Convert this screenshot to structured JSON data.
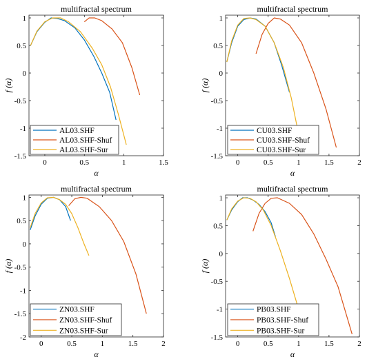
{
  "chart_data": [
    {
      "type": "line",
      "title": "multifractal spectrum",
      "xlabel": "α",
      "ylabel": "f (α)",
      "xlim": [
        -0.2,
        1.5
      ],
      "ylim": [
        -1.5,
        1.05
      ],
      "xticks": [
        0,
        0.5,
        1,
        1.5
      ],
      "xtick_labels": [
        "0",
        "0.5",
        "1",
        "1.5"
      ],
      "yticks": [
        -1.5,
        -1,
        -0.5,
        0,
        0.5,
        1
      ],
      "ytick_labels": [
        "-1.5",
        "-1",
        "-0.5",
        "0",
        "0.5",
        "1"
      ],
      "legend_position": "bottom-left",
      "series": [
        {
          "name": "AL03.SHF",
          "color": "#0072BD",
          "x": [
            -0.18,
            -0.1,
            0.0,
            0.08,
            0.16,
            0.25,
            0.38,
            0.5,
            0.62,
            0.72,
            0.82,
            0.9
          ],
          "y": [
            0.5,
            0.75,
            0.92,
            1.0,
            0.99,
            0.95,
            0.82,
            0.6,
            0.3,
            0.0,
            -0.35,
            -0.85
          ]
        },
        {
          "name": "AL03.SHF-Shuf",
          "color": "#D95319",
          "x": [
            0.5,
            0.56,
            0.63,
            0.72,
            0.85,
            0.98,
            1.1,
            1.2
          ],
          "y": [
            0.93,
            1.0,
            1.0,
            0.95,
            0.8,
            0.55,
            0.1,
            -0.4
          ]
        },
        {
          "name": "AL03.SHF-Sur",
          "color": "#EDB120",
          "x": [
            -0.18,
            -0.1,
            0.0,
            0.1,
            0.2,
            0.3,
            0.45,
            0.6,
            0.72,
            0.83,
            0.93,
            1.03
          ],
          "y": [
            0.5,
            0.76,
            0.93,
            1.0,
            1.0,
            0.93,
            0.75,
            0.45,
            0.15,
            -0.25,
            -0.75,
            -1.3
          ]
        }
      ]
    },
    {
      "type": "line",
      "title": "multifractal spectrum",
      "xlabel": "α",
      "ylabel": "f (α)",
      "xlim": [
        -0.2,
        2.0
      ],
      "ylim": [
        -1.5,
        1.05
      ],
      "xticks": [
        0,
        0.5,
        1,
        1.5,
        2
      ],
      "xtick_labels": [
        "0",
        "0.5",
        "1",
        "1.5",
        "2"
      ],
      "yticks": [
        -1.5,
        -1,
        -0.5,
        0,
        0.5,
        1
      ],
      "ytick_labels": [
        "-1.5",
        "-1",
        "-0.5",
        "0",
        "0.5",
        "1"
      ],
      "legend_position": "bottom-left",
      "series": [
        {
          "name": "CU03.SHF",
          "color": "#0072BD",
          "x": [
            -0.18,
            -0.1,
            0.0,
            0.1,
            0.2,
            0.3,
            0.45,
            0.6,
            0.72,
            0.85
          ],
          "y": [
            0.2,
            0.55,
            0.85,
            0.97,
            1.0,
            0.98,
            0.85,
            0.55,
            0.15,
            -0.35
          ]
        },
        {
          "name": "CU03.SHF-Shuf",
          "color": "#D95319",
          "x": [
            0.3,
            0.4,
            0.5,
            0.6,
            0.7,
            0.85,
            1.05,
            1.25,
            1.45,
            1.62
          ],
          "y": [
            0.35,
            0.7,
            0.9,
            1.0,
            0.98,
            0.87,
            0.55,
            0.0,
            -0.65,
            -1.35
          ]
        },
        {
          "name": "CU03.SHF-Sur",
          "color": "#EDB120",
          "x": [
            -0.18,
            -0.1,
            0.0,
            0.1,
            0.2,
            0.3,
            0.45,
            0.6,
            0.75,
            0.88,
            0.98
          ],
          "y": [
            0.2,
            0.58,
            0.87,
            0.99,
            1.0,
            0.97,
            0.85,
            0.55,
            0.1,
            -0.45,
            -1.0
          ]
        }
      ]
    },
    {
      "type": "line",
      "title": "multifractal spectrum",
      "xlabel": "α",
      "ylabel": "f (α)",
      "xlim": [
        -0.2,
        2.0
      ],
      "ylim": [
        -2.0,
        1.05
      ],
      "xticks": [
        0,
        0.5,
        1,
        1.5,
        2
      ],
      "xtick_labels": [
        "0",
        "0.5",
        "1",
        "1.5",
        "2"
      ],
      "yticks": [
        -2,
        -1.5,
        -1,
        -0.5,
        0,
        0.5,
        1
      ],
      "ytick_labels": [
        "-2",
        "-1.5",
        "-1",
        "-0.5",
        "0",
        "0.5",
        "1"
      ],
      "legend_position": "bottom-left",
      "series": [
        {
          "name": "ZN03.SHF",
          "color": "#0072BD",
          "x": [
            -0.18,
            -0.1,
            0.0,
            0.1,
            0.2,
            0.3,
            0.4,
            0.48
          ],
          "y": [
            0.3,
            0.6,
            0.85,
            0.98,
            1.0,
            0.95,
            0.8,
            0.5
          ]
        },
        {
          "name": "ZN03.SHF-Shuf",
          "color": "#D95319",
          "x": [
            0.45,
            0.55,
            0.65,
            0.75,
            0.95,
            1.15,
            1.35,
            1.55,
            1.72
          ],
          "y": [
            0.82,
            0.97,
            1.0,
            0.98,
            0.8,
            0.5,
            0.05,
            -0.65,
            -1.5
          ]
        },
        {
          "name": "ZN03.SHF-Sur",
          "color": "#EDB120",
          "x": [
            -0.18,
            -0.1,
            0.0,
            0.1,
            0.2,
            0.3,
            0.4,
            0.5,
            0.6,
            0.7,
            0.78
          ],
          "y": [
            0.35,
            0.65,
            0.88,
            0.99,
            1.0,
            0.95,
            0.85,
            0.65,
            0.35,
            0.0,
            -0.25
          ]
        }
      ]
    },
    {
      "type": "line",
      "title": "multifractal spectrum",
      "xlabel": "α",
      "ylabel": "f (α)",
      "xlim": [
        -0.2,
        2.0
      ],
      "ylim": [
        -1.5,
        1.05
      ],
      "xticks": [
        0,
        0.5,
        1,
        1.5,
        2
      ],
      "xtick_labels": [
        "0",
        "0.5",
        "1",
        "1.5",
        "2"
      ],
      "yticks": [
        -1.5,
        -1,
        -0.5,
        0,
        0.5,
        1
      ],
      "ytick_labels": [
        "-1.5",
        "-1",
        "-0.5",
        "0",
        "0.5",
        "1"
      ],
      "legend_position": "bottom-left",
      "series": [
        {
          "name": "PB03.SHF",
          "color": "#0072BD",
          "x": [
            -0.18,
            -0.1,
            0.0,
            0.08,
            0.16,
            0.25,
            0.35,
            0.45,
            0.55,
            0.62
          ],
          "y": [
            0.6,
            0.78,
            0.93,
            1.0,
            1.0,
            0.96,
            0.88,
            0.75,
            0.55,
            0.3
          ]
        },
        {
          "name": "PB03.SHF-Shuf",
          "color": "#D95319",
          "x": [
            0.25,
            0.35,
            0.45,
            0.55,
            0.65,
            0.85,
            1.05,
            1.25,
            1.45,
            1.65,
            1.88
          ],
          "y": [
            0.4,
            0.72,
            0.9,
            0.99,
            1.0,
            0.9,
            0.7,
            0.35,
            -0.1,
            -0.6,
            -1.45
          ]
        },
        {
          "name": "PB03.SHF-Sur",
          "color": "#EDB120",
          "x": [
            -0.18,
            -0.1,
            0.0,
            0.1,
            0.2,
            0.3,
            0.42,
            0.55,
            0.7,
            0.85,
            1.0
          ],
          "y": [
            0.6,
            0.8,
            0.94,
            1.0,
            0.99,
            0.93,
            0.78,
            0.5,
            0.05,
            -0.45,
            -1.0
          ]
        }
      ]
    }
  ]
}
